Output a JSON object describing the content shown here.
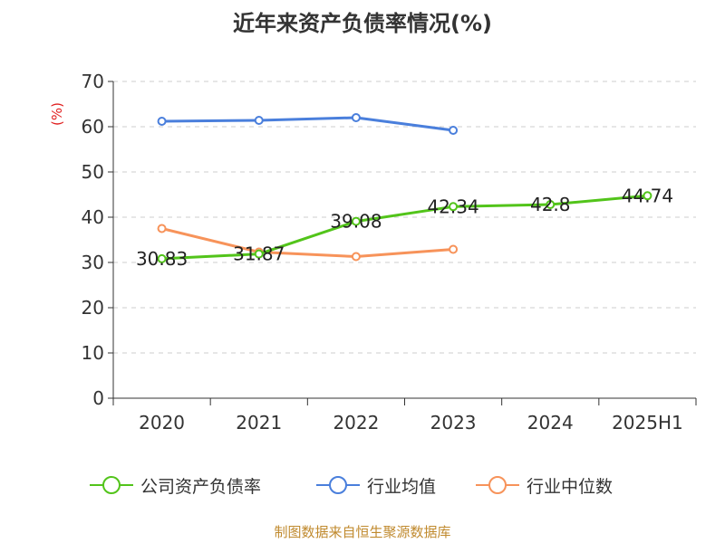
{
  "chart_data": {
    "type": "line",
    "title": "近年来资产负债率情况(%)",
    "ylabel": "(%)",
    "ylim": [
      0,
      70
    ],
    "yticks": [
      0,
      10,
      20,
      30,
      40,
      50,
      60,
      70
    ],
    "categories": [
      "2020",
      "2021",
      "2022",
      "2023",
      "2024",
      "2025H1"
    ],
    "grid": true,
    "legend_position": "bottom",
    "series": [
      {
        "name": "公司资产负债率",
        "color": "#52c41a",
        "values": [
          30.83,
          31.87,
          39.08,
          42.34,
          42.8,
          44.74
        ],
        "labels": [
          "30.83",
          "31.87",
          "39.08",
          "42.34",
          "42.8",
          "44.74"
        ]
      },
      {
        "name": "行业均值",
        "color": "#4a7fdc",
        "values": [
          61.2,
          61.4,
          62.0,
          59.2,
          null,
          null
        ]
      },
      {
        "name": "行业中位数",
        "color": "#f7935a",
        "values": [
          37.5,
          32.3,
          31.3,
          32.9,
          null,
          null
        ]
      }
    ]
  },
  "footer": "制图数据来自恒生聚源数据库"
}
